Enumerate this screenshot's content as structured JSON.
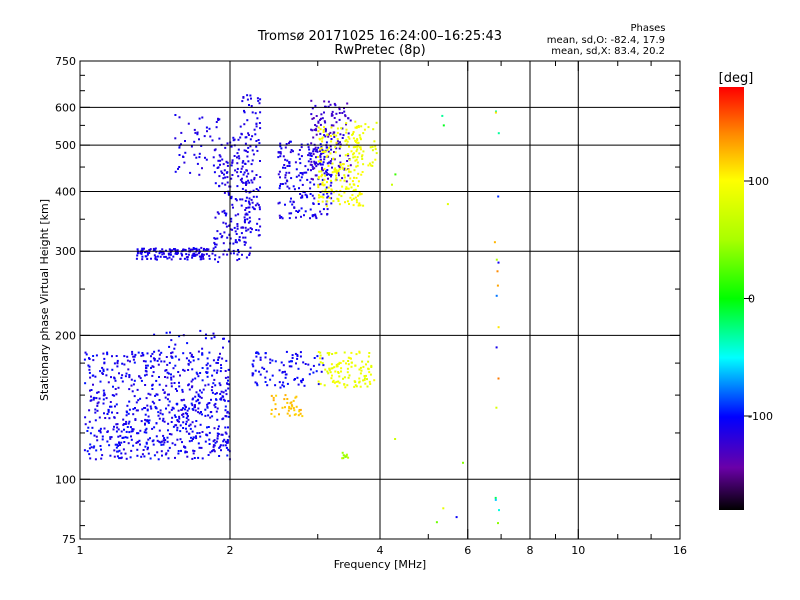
{
  "header": {
    "title": "Tromsø 20171025 16:24:00–16:25:43",
    "subtitle": "RwPretec (8p)",
    "phases_title": "Phases",
    "stat_o": "mean, sd,O: -82.4, 17.9",
    "stat_x": "mean, sd,X: 83.4, 20.2"
  },
  "colorbar": {
    "unit": "[deg]",
    "range": [
      -180,
      180
    ],
    "ticks": [
      {
        "value": 100,
        "label": "100"
      },
      {
        "value": 0,
        "label": "0"
      },
      {
        "value": -100,
        "label": "-100"
      }
    ]
  },
  "chart_data": {
    "type": "scatter",
    "title": "Tromsø 20171025 16:24:00–16:25:43",
    "subtitle": "RwPretec (8p)",
    "xlabel": "Frequency [MHz]",
    "ylabel": "Stationary phase Virtual Height [km]",
    "x_scale": "log",
    "y_scale": "log",
    "xlim": [
      1,
      16
    ],
    "ylim": [
      75,
      750
    ],
    "xticks": [
      {
        "value": 1,
        "label": "1"
      },
      {
        "value": 2,
        "label": "2"
      },
      {
        "value": 4,
        "label": "4"
      },
      {
        "value": 6,
        "label": "6"
      },
      {
        "value": 8,
        "label": "8"
      },
      {
        "value": 10,
        "label": "10"
      },
      {
        "value": 16,
        "label": "16"
      }
    ],
    "xgrid": [
      2,
      4,
      6,
      8,
      10
    ],
    "xminor": [
      3,
      5,
      7,
      9,
      12,
      14
    ],
    "yticks": [
      {
        "value": 75,
        "label": "75"
      },
      {
        "value": 100,
        "label": "100"
      },
      {
        "value": 200,
        "label": "200"
      },
      {
        "value": 300,
        "label": "300"
      },
      {
        "value": 400,
        "label": "400"
      },
      {
        "value": 500,
        "label": "500"
      },
      {
        "value": 600,
        "label": "600"
      },
      {
        "value": 750,
        "label": "750"
      }
    ],
    "ygrid": [
      100,
      200,
      300,
      400,
      500,
      600
    ],
    "yminor": [
      80,
      90,
      125,
      150,
      175,
      250,
      350,
      450,
      550,
      650,
      700
    ],
    "grid": true,
    "color_by": "phase [deg]",
    "clusters": [
      {
        "x": [
          1.02,
          2.0
        ],
        "y": [
          110,
          185
        ],
        "phase": [
          -120,
          -95
        ],
        "n": 650
      },
      {
        "x": [
          1.4,
          2.0
        ],
        "y": [
          118,
          205
        ],
        "phase": [
          -115,
          -95
        ],
        "n": 120
      },
      {
        "x": [
          1.3,
          1.85
        ],
        "y": [
          288,
          305
        ],
        "phase": [
          -118,
          -100
        ],
        "n": 140
      },
      {
        "x": [
          1.85,
          2.2
        ],
        "y": [
          285,
          520
        ],
        "phase": [
          -118,
          -105
        ],
        "n": 170
      },
      {
        "x": [
          1.55,
          1.95
        ],
        "y": [
          430,
          580
        ],
        "phase": [
          -118,
          -105
        ],
        "n": 60
      },
      {
        "x": [
          2.1,
          2.3
        ],
        "y": [
          320,
          640
        ],
        "phase": [
          -118,
          -105
        ],
        "n": 120
      },
      {
        "x": [
          2.5,
          3.2
        ],
        "y": [
          350,
          510
        ],
        "phase": [
          -120,
          -100
        ],
        "n": 200
      },
      {
        "x": [
          2.9,
          3.5
        ],
        "y": [
          420,
          620
        ],
        "phase": [
          -135,
          -115
        ],
        "n": 140
      },
      {
        "x": [
          3.0,
          3.7
        ],
        "y": [
          370,
          550
        ],
        "phase": [
          85,
          105
        ],
        "n": 200
      },
      {
        "x": [
          3.4,
          3.95
        ],
        "y": [
          450,
          560
        ],
        "phase": [
          80,
          100
        ],
        "n": 40
      },
      {
        "x": [
          2.2,
          3.1
        ],
        "y": [
          155,
          185
        ],
        "phase": [
          -112,
          -95
        ],
        "n": 90
      },
      {
        "x": [
          3.0,
          3.9
        ],
        "y": [
          155,
          185
        ],
        "phase": [
          80,
          100
        ],
        "n": 110
      },
      {
        "x": [
          2.4,
          2.8
        ],
        "y": [
          135,
          150
        ],
        "phase": [
          110,
          130
        ],
        "n": 40
      },
      {
        "x": [
          3.35,
          3.5
        ],
        "y": [
          110,
          114
        ],
        "phase": [
          40,
          60
        ],
        "n": 10
      },
      {
        "x": [
          6.8,
          6.95
        ],
        "y": [
          80,
          600
        ],
        "phase": [
          -130,
          160
        ],
        "n": 18
      },
      {
        "x": [
          4.2,
          6.5
        ],
        "y": [
          80,
          590
        ],
        "phase": [
          -120,
          100
        ],
        "n": 10
      }
    ]
  }
}
